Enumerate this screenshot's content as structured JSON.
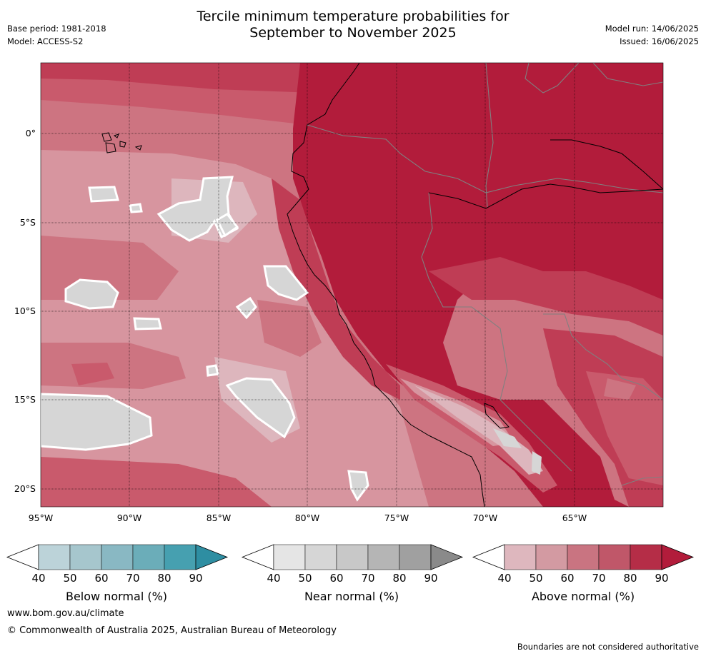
{
  "title": {
    "line1": "Tercile minimum temperature probabilities for",
    "line2": "September to November 2025"
  },
  "meta": {
    "base_period": "Base period: 1981-2018",
    "model": "Model: ACCESS-S2",
    "model_run": "Model run: 14/06/2025",
    "issued": "Issued: 16/06/2025"
  },
  "axes": {
    "lat_labels": [
      "0°",
      "5°S",
      "10°S",
      "15°S",
      "20°S"
    ],
    "lon_labels": [
      "95°W",
      "90°W",
      "85°W",
      "80°W",
      "75°W",
      "70°W",
      "65°W"
    ]
  },
  "legends": [
    {
      "name": "Below normal (%)",
      "ticks": [
        "40",
        "50",
        "60",
        "70",
        "80",
        "90"
      ],
      "colors": [
        "#ffffff",
        "#bcd3d9",
        "#a6c6cd",
        "#89b8c3",
        "#6badb9",
        "#46a0b0",
        "#2e8ea2"
      ]
    },
    {
      "name": "Near normal (%)",
      "ticks": [
        "40",
        "50",
        "60",
        "70",
        "80",
        "90"
      ],
      "colors": [
        "#ffffff",
        "#e5e5e5",
        "#d6d6d6",
        "#c8c8c8",
        "#b5b5b5",
        "#a0a0a0",
        "#8a8a8a"
      ]
    },
    {
      "name": "Above normal (%)",
      "ticks": [
        "40",
        "50",
        "60",
        "70",
        "80",
        "90"
      ],
      "colors": [
        "#ffffff",
        "#deb7be",
        "#d39aa2",
        "#c97481",
        "#c05769",
        "#b52d47",
        "#b21c3b"
      ]
    }
  ],
  "map_colors": {
    "above_90": "#b21c3b",
    "above_80": "#bf3d55",
    "above_70": "#c95a6c",
    "above_60": "#cd7481",
    "above_50": "#d7959f",
    "above_40": "#ddb6bd",
    "near_50": "#d6d6d6",
    "near_40": "#e5e5e5"
  },
  "footer": {
    "website": "www.bom.gov.au/climate",
    "copyright": "© Commonwealth of Australia 2025, Australian Bureau of Meteorology",
    "disclaimer": "Boundaries are not considered authoritative"
  }
}
